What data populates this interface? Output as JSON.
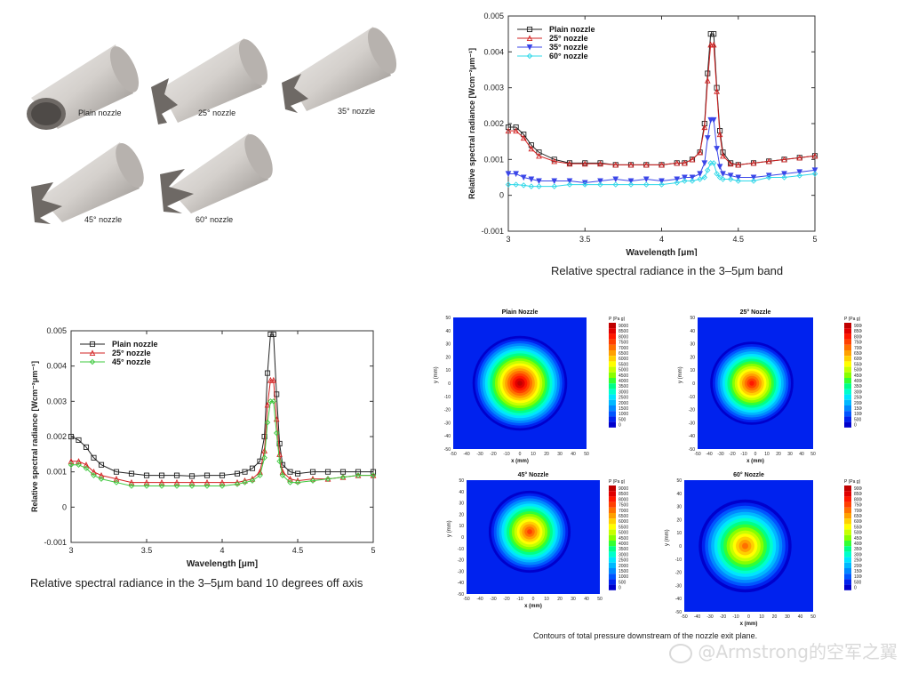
{
  "nozzles": {
    "labels": [
      "Plain nozzle",
      "25° nozzle",
      "35° nozzle",
      "45° nozzle",
      "60° nozzle"
    ]
  },
  "captions": {
    "top_chart": "Relative spectral radiance in the 3–5μm band",
    "bottom_chart": "Relative spectral radiance in the 3–5μm band 10 degrees off axis",
    "contours": "Contours of total pressure downstream of the nozzle exit plane."
  },
  "watermark": "@Armstrong的空军之翼",
  "colors": {
    "plain": "#222222",
    "deg25": "#d22020",
    "deg35": "#3b46e8",
    "deg45": "#3ec83e",
    "deg60": "#2fd8e8"
  },
  "chart_data": [
    {
      "type": "line",
      "xlabel": "Wavelength [μm]",
      "ylabel": "Relative spectral radiance [Wcm⁻²μm⁻¹]",
      "xlim": [
        3,
        5
      ],
      "ylim": [
        -0.001,
        0.005
      ],
      "xticks": [
        "3",
        "3.5",
        "4",
        "4.5",
        "5"
      ],
      "yticks": [
        "-0.001",
        "0",
        "0.001",
        "0.002",
        "0.003",
        "0.004",
        "0.005"
      ],
      "legend": "top-left",
      "x": [
        3.0,
        3.05,
        3.1,
        3.15,
        3.2,
        3.3,
        3.4,
        3.5,
        3.6,
        3.7,
        3.8,
        3.9,
        4.0,
        4.1,
        4.15,
        4.2,
        4.25,
        4.28,
        4.3,
        4.32,
        4.34,
        4.36,
        4.38,
        4.4,
        4.45,
        4.5,
        4.6,
        4.7,
        4.8,
        4.9,
        5.0
      ],
      "series": [
        {
          "name": "Plain nozzle",
          "color": "#222222",
          "marker": "square",
          "values": [
            0.0019,
            0.0019,
            0.0017,
            0.0014,
            0.0012,
            0.001,
            0.0009,
            0.0009,
            0.0009,
            0.00085,
            0.00085,
            0.00085,
            0.00085,
            0.0009,
            0.0009,
            0.001,
            0.0012,
            0.002,
            0.0034,
            0.0045,
            0.0045,
            0.003,
            0.0018,
            0.0012,
            0.0009,
            0.00085,
            0.0009,
            0.00095,
            0.001,
            0.00105,
            0.0011
          ]
        },
        {
          "name": "25° nozzle",
          "color": "#d22020",
          "marker": "triangle",
          "values": [
            0.0018,
            0.0018,
            0.0016,
            0.0013,
            0.0011,
            0.00095,
            0.00088,
            0.00088,
            0.00088,
            0.00085,
            0.00085,
            0.00085,
            0.00085,
            0.0009,
            0.0009,
            0.001,
            0.0012,
            0.0019,
            0.0032,
            0.0042,
            0.0042,
            0.0029,
            0.0017,
            0.0011,
            0.00088,
            0.00085,
            0.0009,
            0.00095,
            0.001,
            0.00105,
            0.0011
          ]
        },
        {
          "name": "35° nozzle",
          "color": "#3b46e8",
          "marker": "triangle-down",
          "values": [
            0.0006,
            0.0006,
            0.0005,
            0.00045,
            0.0004,
            0.0004,
            0.0004,
            0.00035,
            0.0004,
            0.00045,
            0.0004,
            0.00045,
            0.0004,
            0.00045,
            0.0005,
            0.0005,
            0.0006,
            0.0009,
            0.0016,
            0.0021,
            0.0021,
            0.0013,
            0.0008,
            0.0006,
            0.00055,
            0.0005,
            0.0005,
            0.00055,
            0.0006,
            0.00065,
            0.0007
          ]
        },
        {
          "name": "60° nozzle",
          "color": "#2fd8e8",
          "marker": "diamond",
          "values": [
            0.0003,
            0.0003,
            0.00028,
            0.00025,
            0.00025,
            0.00025,
            0.0003,
            0.0003,
            0.0003,
            0.0003,
            0.0003,
            0.0003,
            0.0003,
            0.00035,
            0.0004,
            0.0004,
            0.00045,
            0.0005,
            0.0007,
            0.0009,
            0.0009,
            0.0006,
            0.0005,
            0.00045,
            0.00045,
            0.0004,
            0.0004,
            0.0005,
            0.0005,
            0.00055,
            0.0006
          ]
        }
      ]
    },
    {
      "type": "line",
      "xlabel": "Wavelength [μm]",
      "ylabel": "Relative spectral radiance [Wcm⁻²μm⁻¹]",
      "xlim": [
        3,
        5
      ],
      "ylim": [
        -0.001,
        0.005
      ],
      "xticks": [
        "3",
        "3.5",
        "4",
        "4.5",
        "5"
      ],
      "yticks": [
        "-0.001",
        "0",
        "0.001",
        "0.002",
        "0.003",
        "0.004",
        "0.005"
      ],
      "legend": "top-left",
      "x": [
        3.0,
        3.05,
        3.1,
        3.15,
        3.2,
        3.3,
        3.4,
        3.5,
        3.6,
        3.7,
        3.8,
        3.9,
        4.0,
        4.1,
        4.15,
        4.2,
        4.25,
        4.28,
        4.3,
        4.32,
        4.34,
        4.36,
        4.38,
        4.4,
        4.45,
        4.5,
        4.6,
        4.7,
        4.8,
        4.9,
        5.0
      ],
      "series": [
        {
          "name": "Plain nozzle",
          "color": "#222222",
          "marker": "square",
          "values": [
            0.002,
            0.0019,
            0.0017,
            0.0014,
            0.0012,
            0.001,
            0.00095,
            0.0009,
            0.0009,
            0.0009,
            0.00088,
            0.0009,
            0.0009,
            0.00095,
            0.001,
            0.0011,
            0.0013,
            0.002,
            0.0038,
            0.0049,
            0.0049,
            0.0032,
            0.0018,
            0.0012,
            0.001,
            0.00095,
            0.001,
            0.001,
            0.001,
            0.001,
            0.001
          ]
        },
        {
          "name": "25° nozzle",
          "color": "#d22020",
          "marker": "triangle",
          "values": [
            0.0013,
            0.0013,
            0.0012,
            0.001,
            0.0009,
            0.0008,
            0.0007,
            0.0007,
            0.0007,
            0.0007,
            0.0007,
            0.0007,
            0.0007,
            0.0007,
            0.00075,
            0.0008,
            0.001,
            0.0016,
            0.0029,
            0.0036,
            0.0036,
            0.0025,
            0.0015,
            0.001,
            0.0008,
            0.00075,
            0.0008,
            0.0008,
            0.00085,
            0.0009,
            0.0009
          ]
        },
        {
          "name": "45° nozzle",
          "color": "#3ec83e",
          "marker": "diamond",
          "values": [
            0.0012,
            0.0012,
            0.0011,
            0.0009,
            0.0008,
            0.0007,
            0.0006,
            0.0006,
            0.0006,
            0.0006,
            0.0006,
            0.0006,
            0.0006,
            0.00065,
            0.0007,
            0.00075,
            0.0009,
            0.0014,
            0.0024,
            0.003,
            0.003,
            0.0021,
            0.0013,
            0.0009,
            0.0007,
            0.0007,
            0.00075,
            0.0008,
            0.00085,
            0.0009,
            0.0009
          ]
        }
      ]
    },
    {
      "type": "heatmap",
      "panels": [
        {
          "title": "Plain Nozzle",
          "peak": 9000
        },
        {
          "title": "25° Nozzle",
          "peak": 8000
        },
        {
          "title": "45° Nozzle",
          "peak": 7500
        },
        {
          "title": "60° Nozzle",
          "peak": 7000
        }
      ],
      "xlabel": "x (mm)",
      "ylabel": "y (mm)",
      "xticks": [
        "-50",
        "-40",
        "-30",
        "-20",
        "-10",
        "0",
        "10",
        "20",
        "30",
        "40",
        "50"
      ],
      "yticks": [
        "-50",
        "-40",
        "-30",
        "-20",
        "-10",
        "0",
        "10",
        "20",
        "30",
        "40",
        "50"
      ],
      "colorbar_title": "P (Pa g)",
      "colorbar_levels": [
        "9000",
        "8500",
        "8000",
        "7500",
        "7000",
        "6500",
        "6000",
        "5500",
        "5000",
        "4500",
        "4000",
        "3500",
        "3000",
        "2500",
        "2000",
        "1500",
        "1000",
        "500",
        "0"
      ]
    }
  ]
}
